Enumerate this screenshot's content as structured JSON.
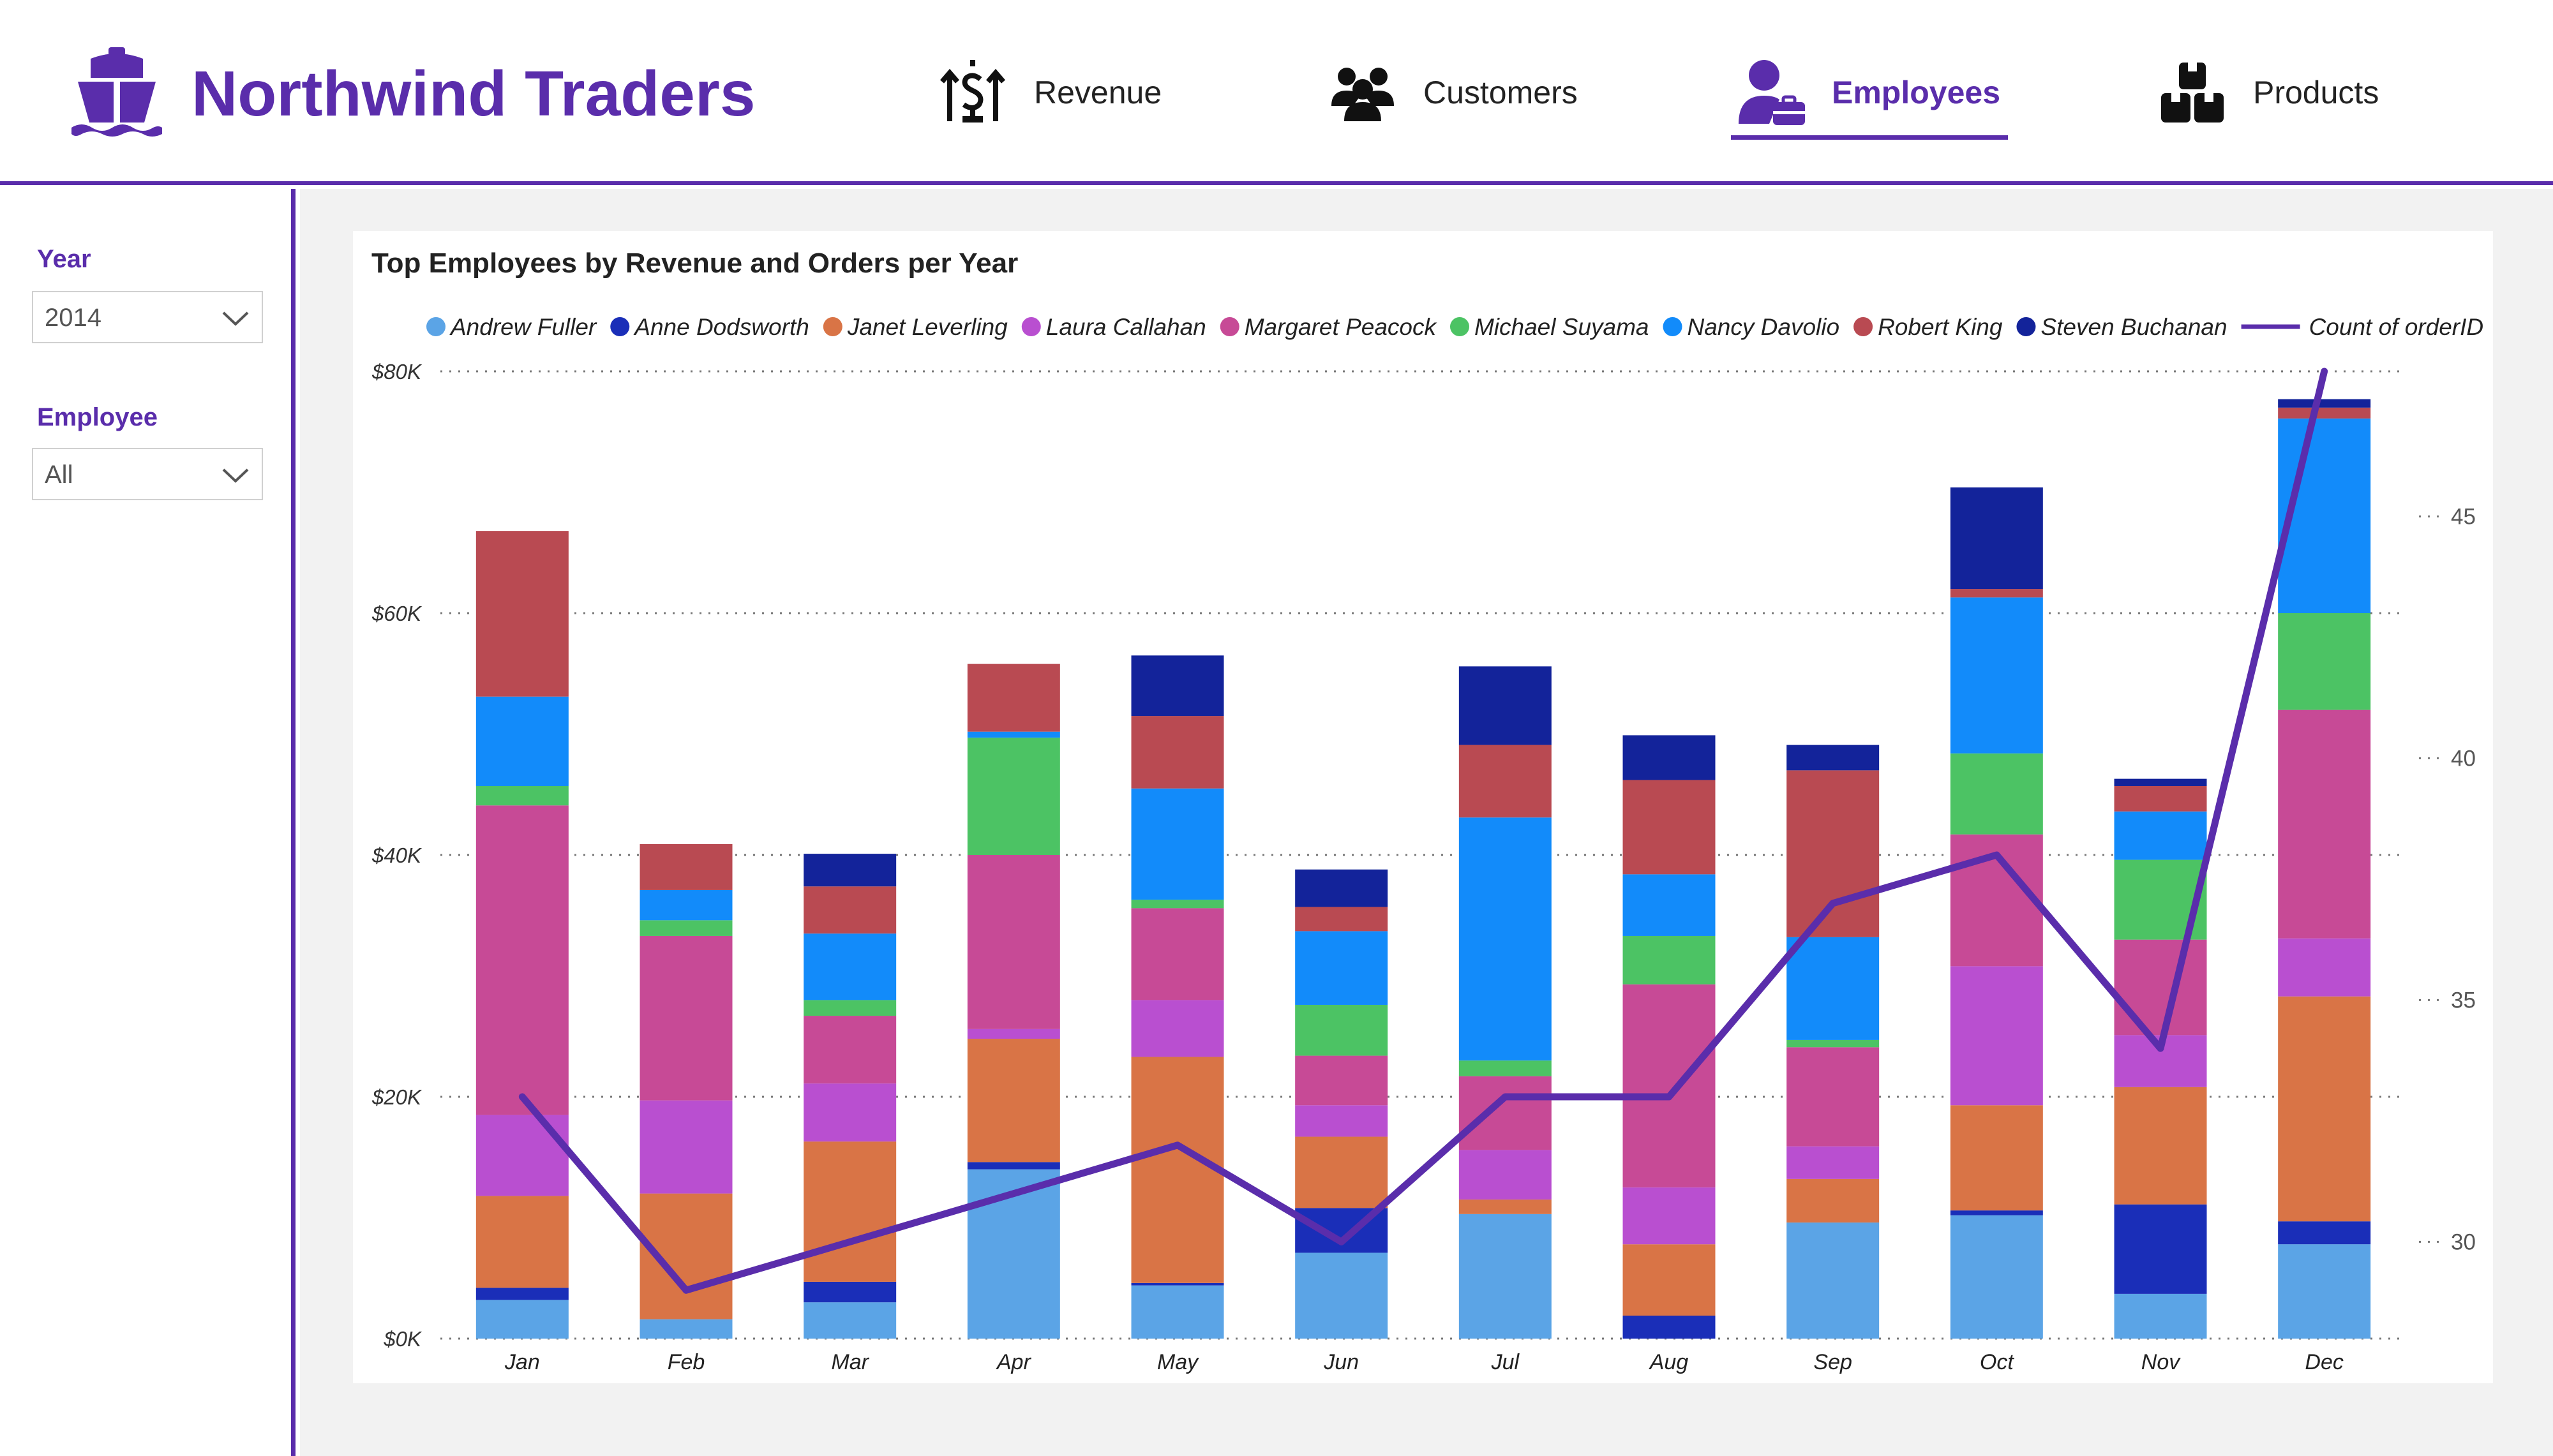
{
  "app": {
    "brand": "Northwind Traders"
  },
  "nav": [
    {
      "label": "Revenue",
      "icon": "revenue-icon",
      "active": false
    },
    {
      "label": "Customers",
      "icon": "customers-icon",
      "active": false
    },
    {
      "label": "Employees",
      "icon": "employees-icon",
      "active": true
    },
    {
      "label": "Products",
      "icon": "products-icon",
      "active": false
    }
  ],
  "filters": {
    "year": {
      "label": "Year",
      "value": "2014"
    },
    "employee": {
      "label": "Employee",
      "value": "All"
    }
  },
  "colors": {
    "accent": "#5a2dab",
    "line": "#5a2dab"
  },
  "chart_data": {
    "type": "bar",
    "stacked": true,
    "title": "Top Employees by Revenue and Orders per Year",
    "legend_position": "top",
    "grid": true,
    "categories": [
      "Jan",
      "Feb",
      "Mar",
      "Apr",
      "May",
      "Jun",
      "Jul",
      "Aug",
      "Sep",
      "Oct",
      "Nov",
      "Dec"
    ],
    "y_ticks": [
      "$0K",
      "$20K",
      "$40K",
      "$60K",
      "$80K"
    ],
    "ylim": [
      0,
      80000
    ],
    "y2_ticks": [
      "30",
      "35",
      "40",
      "45"
    ],
    "y2lim": [
      28,
      48
    ],
    "series": [
      {
        "name": "Andrew Fuller",
        "color": "#5ba4e6",
        "values": [
          3200,
          1600,
          3000,
          14000,
          4400,
          7100,
          10300,
          0,
          9600,
          10200,
          3700,
          7800
        ]
      },
      {
        "name": "Anne Dodsworth",
        "color": "#1a2eb8",
        "values": [
          1000,
          0,
          1700,
          600,
          200,
          3700,
          0,
          1900,
          0,
          400,
          7400,
          1900
        ]
      },
      {
        "name": "Janet Leverling",
        "color": "#d97446",
        "values": [
          7600,
          10400,
          11600,
          10200,
          18700,
          5900,
          1200,
          5900,
          3600,
          8700,
          9700,
          18600
        ]
      },
      {
        "name": "Laura Callahan",
        "color": "#b94fd0",
        "values": [
          6700,
          7700,
          4800,
          800,
          4700,
          2600,
          4100,
          4700,
          2700,
          11500,
          4300,
          4800
        ]
      },
      {
        "name": "Margaret Peacock",
        "color": "#c74a96",
        "values": [
          25600,
          13600,
          5600,
          14400,
          7600,
          4100,
          6100,
          16800,
          8200,
          10900,
          7900,
          18900
        ]
      },
      {
        "name": "Michael Suyama",
        "color": "#4cc364",
        "values": [
          1600,
          1300,
          1300,
          9700,
          700,
          4200,
          1300,
          4000,
          600,
          6700,
          6600,
          8000
        ]
      },
      {
        "name": "Nancy Davolio",
        "color": "#128bfa",
        "values": [
          7400,
          2500,
          5500,
          500,
          9200,
          6100,
          20100,
          5100,
          8500,
          12900,
          4000,
          16100
        ]
      },
      {
        "name": "Robert King",
        "color": "#b94a52",
        "values": [
          13700,
          3800,
          3900,
          5600,
          6000,
          2000,
          6000,
          7800,
          13800,
          700,
          2100,
          900
        ]
      },
      {
        "name": "Steven Buchanan",
        "color": "#13239a",
        "values": [
          0,
          0,
          2700,
          0,
          5000,
          3100,
          6500,
          3700,
          2100,
          8400,
          600,
          700
        ]
      }
    ],
    "line": {
      "name": "Count of orderID",
      "color": "#5a2dab",
      "axis": "right",
      "values": [
        33,
        29,
        30,
        31,
        32,
        30,
        33,
        33,
        37,
        38,
        34,
        48
      ]
    }
  }
}
